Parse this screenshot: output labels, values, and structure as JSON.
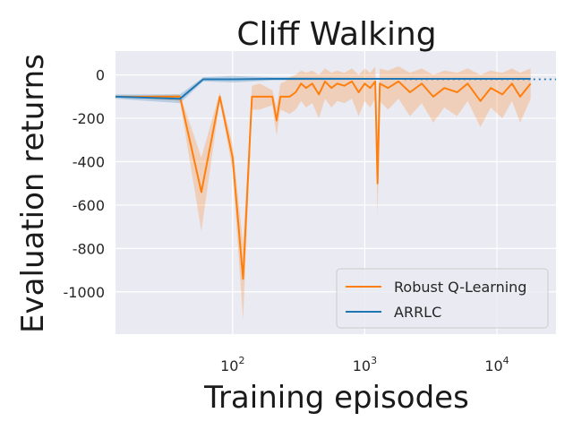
{
  "chart_data": {
    "type": "line",
    "title": "Cliff Walking",
    "xlabel": "Training episodes",
    "ylabel": "Evaluation returns",
    "xscale": "log",
    "xlim": [
      13,
      28000
    ],
    "ylim": [
      -1195,
      110
    ],
    "grid": true,
    "legend_position": "lower-right",
    "x_ticks": [
      {
        "value": 100,
        "base": "10",
        "exp": "2"
      },
      {
        "value": 1000,
        "base": "10",
        "exp": "3"
      },
      {
        "value": 10000,
        "base": "10",
        "exp": "4"
      }
    ],
    "y_ticks": [
      0,
      -200,
      -400,
      -600,
      -800,
      -1000
    ],
    "colors": {
      "robust": "#ff7f0e",
      "arrlc": "#1f77b4",
      "background": "#eaeaf2",
      "grid": "#ffffff"
    },
    "reference_line": {
      "y": -20,
      "style": "dotted",
      "color": "#1f77b4"
    },
    "series": [
      {
        "name": "Robust Q-Learning",
        "color": "#ff7f0e",
        "x": [
          13,
          40,
          58,
          80,
          100,
          120,
          140,
          160,
          200,
          215,
          230,
          250,
          270,
          300,
          330,
          360,
          400,
          450,
          500,
          560,
          620,
          700,
          800,
          900,
          1000,
          1100,
          1200,
          1250,
          1300,
          1500,
          1800,
          2200,
          2700,
          3300,
          4000,
          5000,
          6000,
          7500,
          9000,
          11000,
          13000,
          15000,
          18000
        ],
        "y": [
          -100,
          -100,
          -540,
          -100,
          -380,
          -940,
          -100,
          -100,
          -100,
          -210,
          -100,
          -100,
          -100,
          -80,
          -40,
          -60,
          -40,
          -90,
          -30,
          -60,
          -40,
          -50,
          -30,
          -80,
          -40,
          -60,
          -30,
          -500,
          -40,
          -60,
          -30,
          -80,
          -40,
          -100,
          -60,
          -80,
          -40,
          -120,
          -60,
          -90,
          -40,
          -100,
          -40
        ],
        "upper": [
          -100,
          -90,
          -380,
          -80,
          -320,
          -780,
          -50,
          -40,
          -70,
          -150,
          -40,
          -30,
          -10,
          0,
          20,
          10,
          20,
          0,
          30,
          10,
          20,
          10,
          30,
          0,
          30,
          10,
          40,
          -300,
          30,
          20,
          40,
          10,
          30,
          0,
          20,
          10,
          30,
          0,
          20,
          10,
          30,
          10,
          30
        ],
        "lower": [
          -100,
          -120,
          -720,
          -120,
          -440,
          -1130,
          -160,
          -160,
          -140,
          -280,
          -160,
          -170,
          -180,
          -160,
          -120,
          -150,
          -130,
          -200,
          -110,
          -150,
          -120,
          -130,
          -110,
          -190,
          -120,
          -150,
          -110,
          -660,
          -120,
          -160,
          -110,
          -190,
          -130,
          -220,
          -150,
          -190,
          -120,
          -240,
          -150,
          -200,
          -120,
          -220,
          -110
        ]
      },
      {
        "name": "ARRLC",
        "color": "#1f77b4",
        "x": [
          13,
          40,
          60,
          100,
          200,
          500,
          1000,
          2000,
          5000,
          18000
        ],
        "y": [
          -100,
          -110,
          -20,
          -20,
          -18,
          -18,
          -18,
          -18,
          -18,
          -18
        ],
        "upper": [
          -90,
          -90,
          -10,
          -5,
          -10,
          -12,
          -14,
          -15,
          -15,
          -15
        ],
        "lower": [
          -110,
          -130,
          -30,
          -35,
          -25,
          -24,
          -22,
          -22,
          -22,
          -22
        ]
      }
    ]
  }
}
